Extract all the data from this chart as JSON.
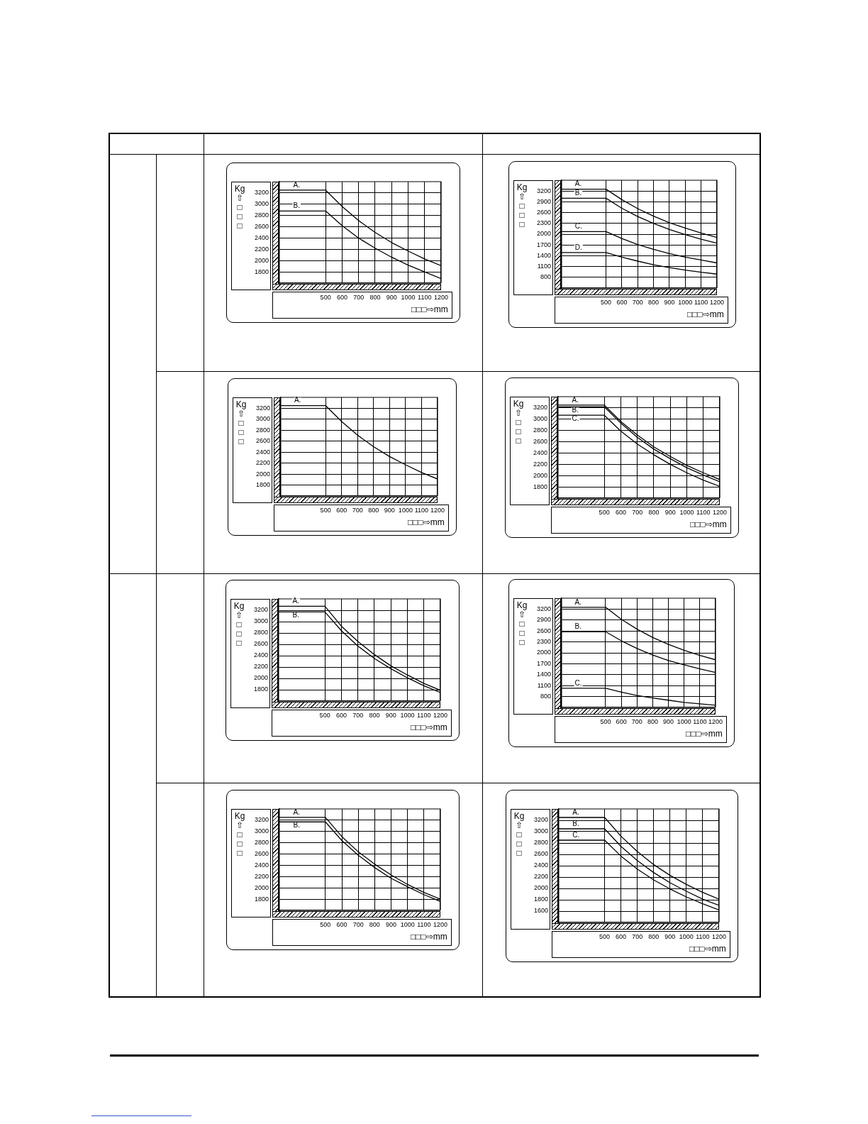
{
  "chart_data": [
    {
      "type": "line",
      "xlabel": "□□□⇨mm",
      "ylabel": "Kg\n⇧\n□\n□\n□",
      "x": [
        220,
        500,
        600,
        700,
        800,
        900,
        1000,
        1100,
        1200
      ],
      "xlim": [
        220,
        1200
      ],
      "ylim": [
        1600,
        3400
      ],
      "xticks": [
        500,
        600,
        700,
        800,
        900,
        1000,
        1100,
        1200
      ],
      "yticks": [
        1800,
        2000,
        2200,
        2400,
        2600,
        2800,
        3000,
        3200
      ],
      "grid": true,
      "legend": false,
      "marker": "none",
      "line_style": "solid",
      "series": [
        {
          "name": "A.",
          "color": "#000000",
          "values": [
            3250,
            3250,
            2960,
            2710,
            2500,
            2320,
            2170,
            2030,
            1910
          ]
        },
        {
          "name": "B.",
          "color": "#000000",
          "values": [
            2880,
            2880,
            2620,
            2400,
            2220,
            2060,
            1920,
            1800,
            1680
          ]
        }
      ]
    },
    {
      "type": "line",
      "xlabel": "□□□⇨mm",
      "ylabel": "Kg\n⇧\n□\n□\n□",
      "x": [
        220,
        500,
        600,
        700,
        800,
        900,
        1000,
        1100,
        1200
      ],
      "xlim": [
        220,
        1200
      ],
      "ylim": [
        500,
        3500
      ],
      "xticks": [
        500,
        600,
        700,
        800,
        900,
        1000,
        1100,
        1200
      ],
      "yticks": [
        800,
        1100,
        1400,
        1700,
        2000,
        2300,
        2600,
        2900,
        3200
      ],
      "grid": true,
      "legend": false,
      "marker": "none",
      "line_style": "solid",
      "series": [
        {
          "name": "A.",
          "color": "#000000",
          "values": [
            3250,
            3250,
            2960,
            2710,
            2500,
            2320,
            2170,
            2030,
            1910
          ]
        },
        {
          "name": "B.",
          "color": "#000000",
          "values": [
            3000,
            3000,
            2720,
            2490,
            2300,
            2130,
            1990,
            1860,
            1750
          ]
        },
        {
          "name": "C.",
          "color": "#000000",
          "values": [
            2070,
            2070,
            1880,
            1710,
            1580,
            1460,
            1360,
            1280,
            1200
          ]
        },
        {
          "name": "D.",
          "color": "#000000",
          "values": [
            1490,
            1490,
            1360,
            1250,
            1150,
            1070,
            1000,
            940,
            890
          ]
        }
      ]
    },
    {
      "type": "line",
      "xlabel": "□□□⇨mm",
      "ylabel": "Kg\n⇧\n□\n□\n□",
      "x": [
        220,
        500,
        600,
        700,
        800,
        900,
        1000,
        1100,
        1200
      ],
      "xlim": [
        220,
        1200
      ],
      "ylim": [
        1600,
        3400
      ],
      "xticks": [
        500,
        600,
        700,
        800,
        900,
        1000,
        1100,
        1200
      ],
      "yticks": [
        1800,
        2000,
        2200,
        2400,
        2600,
        2800,
        3000,
        3200
      ],
      "grid": true,
      "legend": false,
      "marker": "none",
      "line_style": "solid",
      "series": [
        {
          "name": "A.",
          "color": "#000000",
          "values": [
            3250,
            3250,
            2960,
            2710,
            2500,
            2320,
            2170,
            2030,
            1910
          ]
        }
      ]
    },
    {
      "type": "line",
      "xlabel": "□□□⇨mm",
      "ylabel": "Kg\n⇧\n□\n□\n□",
      "x": [
        220,
        500,
        600,
        700,
        800,
        900,
        1000,
        1100,
        1200
      ],
      "xlim": [
        220,
        1200
      ],
      "ylim": [
        1600,
        3400
      ],
      "xticks": [
        500,
        600,
        700,
        800,
        900,
        1000,
        1100,
        1200
      ],
      "yticks": [
        1800,
        2000,
        2200,
        2400,
        2600,
        2800,
        3000,
        3200
      ],
      "grid": true,
      "legend": false,
      "marker": "none",
      "line_style": "solid",
      "series": [
        {
          "name": "A.",
          "color": "#000000",
          "values": [
            3250,
            3250,
            2960,
            2720,
            2510,
            2340,
            2180,
            2050,
            1930
          ]
        },
        {
          "name": "B.",
          "color": "#000000",
          "values": [
            3220,
            3220,
            2930,
            2680,
            2470,
            2300,
            2140,
            2010,
            1890
          ]
        },
        {
          "name": "C.",
          "color": "#000000",
          "values": [
            3070,
            3070,
            2790,
            2560,
            2370,
            2200,
            2050,
            1920,
            1810
          ]
        }
      ]
    },
    {
      "type": "line",
      "xlabel": "□□□⇨mm",
      "ylabel": "Kg\n⇧\n□\n□\n□",
      "x": [
        220,
        500,
        600,
        700,
        800,
        900,
        1000,
        1100,
        1200
      ],
      "xlim": [
        220,
        1200
      ],
      "ylim": [
        1600,
        3400
      ],
      "xticks": [
        500,
        600,
        700,
        800,
        900,
        1000,
        1100,
        1200
      ],
      "yticks": [
        1800,
        2000,
        2200,
        2400,
        2600,
        2800,
        3000,
        3200
      ],
      "grid": true,
      "legend": false,
      "marker": "none",
      "line_style": "solid",
      "series": [
        {
          "name": "A.",
          "color": "#000000",
          "values": [
            3270,
            3270,
            2920,
            2650,
            2420,
            2220,
            2060,
            1910,
            1790
          ]
        },
        {
          "name": "B.",
          "color": "#000000",
          "values": [
            3170,
            3170,
            2840,
            2570,
            2350,
            2170,
            2010,
            1870,
            1750
          ]
        }
      ]
    },
    {
      "type": "line",
      "xlabel": "□□□⇨mm",
      "ylabel": "Kg\n⇧\n□\n□\n□",
      "x": [
        220,
        500,
        600,
        700,
        800,
        900,
        1000,
        1100,
        1200
      ],
      "xlim": [
        220,
        1200
      ],
      "ylim": [
        500,
        3500
      ],
      "xticks": [
        500,
        600,
        700,
        800,
        900,
        1000,
        1100,
        1200
      ],
      "yticks": [
        800,
        1100,
        1400,
        1700,
        2000,
        2300,
        2600,
        2900,
        3200
      ],
      "grid": true,
      "legend": false,
      "marker": "none",
      "line_style": "solid",
      "series": [
        {
          "name": "A.",
          "color": "#000000",
          "values": [
            3250,
            3250,
            2920,
            2650,
            2420,
            2230,
            2070,
            1930,
            1810
          ]
        },
        {
          "name": "B.",
          "color": "#000000",
          "values": [
            2580,
            2580,
            2330,
            2120,
            1940,
            1790,
            1670,
            1560,
            1460
          ]
        },
        {
          "name": "C.",
          "color": "#000000",
          "values": [
            1030,
            1030,
            920,
            830,
            760,
            700,
            640,
            600,
            560
          ]
        }
      ]
    },
    {
      "type": "line",
      "xlabel": "□□□⇨mm",
      "ylabel": "Kg\n⇧\n□\n□\n□",
      "x": [
        220,
        500,
        600,
        700,
        800,
        900,
        1000,
        1100,
        1200
      ],
      "xlim": [
        220,
        1200
      ],
      "ylim": [
        1600,
        3400
      ],
      "xticks": [
        500,
        600,
        700,
        800,
        900,
        1000,
        1100,
        1200
      ],
      "yticks": [
        1800,
        2000,
        2200,
        2400,
        2600,
        2800,
        3000,
        3200
      ],
      "grid": true,
      "legend": false,
      "marker": "none",
      "line_style": "solid",
      "series": [
        {
          "name": "A.",
          "color": "#000000",
          "values": [
            3250,
            3250,
            2910,
            2640,
            2420,
            2230,
            2060,
            1920,
            1800
          ]
        },
        {
          "name": "B.",
          "color": "#000000",
          "values": [
            3170,
            3170,
            2840,
            2580,
            2360,
            2170,
            2020,
            1880,
            1760
          ]
        }
      ]
    },
    {
      "type": "line",
      "xlabel": "□□□⇨mm",
      "ylabel": "Kg\n⇧\n□\n□\n□",
      "x": [
        220,
        500,
        600,
        700,
        800,
        900,
        1000,
        1100,
        1200
      ],
      "xlim": [
        220,
        1200
      ],
      "ylim": [
        1400,
        3400
      ],
      "xticks": [
        500,
        600,
        700,
        800,
        900,
        1000,
        1100,
        1200
      ],
      "yticks": [
        1600,
        1800,
        2000,
        2200,
        2400,
        2600,
        2800,
        3000,
        3200
      ],
      "grid": true,
      "legend": false,
      "marker": "none",
      "line_style": "solid",
      "series": [
        {
          "name": "A.",
          "color": "#000000",
          "values": [
            3250,
            3250,
            2920,
            2650,
            2420,
            2230,
            2070,
            1930,
            1810
          ]
        },
        {
          "name": "B.",
          "color": "#000000",
          "values": [
            3050,
            3050,
            2740,
            2490,
            2280,
            2100,
            1950,
            1810,
            1700
          ]
        },
        {
          "name": "C.",
          "color": "#000000",
          "values": [
            2850,
            2850,
            2570,
            2340,
            2150,
            1990,
            1850,
            1730,
            1620
          ]
        }
      ]
    }
  ]
}
